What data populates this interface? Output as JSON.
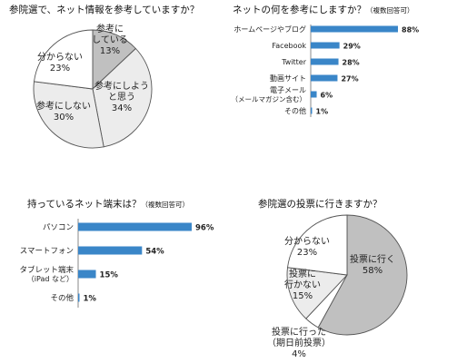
{
  "chart_data": [
    {
      "type": "pie",
      "title": "参院選で、ネット情報を参考していますか？",
      "slices": [
        {
          "label": [
            "参考に",
            "している"
          ],
          "value": 13,
          "pct": "13%",
          "color": "#c0c0c0"
        },
        {
          "label": [
            "参考にしよう",
            "と思う"
          ],
          "value": 34,
          "pct": "34%",
          "color": "#ececec"
        },
        {
          "label": [
            "参考にしない"
          ],
          "value": 30,
          "pct": "30%",
          "color": "#ececec"
        },
        {
          "label": [
            "分からない"
          ],
          "value": 23,
          "pct": "23%",
          "color": "#ffffff"
        }
      ]
    },
    {
      "type": "bar",
      "orientation": "horizontal",
      "title": "ネットの何を参考にしますか？",
      "note": "（複数回答可）",
      "categories": [
        [
          "ホームページやブログ"
        ],
        [
          "Facebook"
        ],
        [
          "Twitter"
        ],
        [
          "動画サイト"
        ],
        [
          "電子メール",
          "（メールマガジン含む）"
        ],
        [
          "その他"
        ]
      ],
      "values": [
        88,
        29,
        28,
        27,
        6,
        1
      ],
      "value_labels": [
        "88%",
        "29%",
        "28%",
        "27%",
        "6%",
        "1%"
      ],
      "xlim": [
        0,
        88
      ],
      "bar_color": "#3a86c8"
    },
    {
      "type": "bar",
      "orientation": "horizontal",
      "title": "持っているネット端末は？",
      "note": "（複数回答可）",
      "categories": [
        [
          "パソコン"
        ],
        [
          "スマートフォン"
        ],
        [
          "タブレット端末",
          "（iPad など）"
        ],
        [
          "その他"
        ]
      ],
      "values": [
        96,
        54,
        15,
        1
      ],
      "value_labels": [
        "96%",
        "54%",
        "15%",
        "1%"
      ],
      "xlim": [
        0,
        96
      ],
      "bar_color": "#3a86c8"
    },
    {
      "type": "pie",
      "title": "参院選の投票に行きますか？",
      "slices": [
        {
          "label": [
            "投票に行く"
          ],
          "value": 58,
          "pct": "58%",
          "color": "#c0c0c0"
        },
        {
          "label": [
            "投票に行った",
            "（期日前投票）"
          ],
          "value": 4,
          "pct": "4%",
          "color": "#ffffff"
        },
        {
          "label": [
            "投票に",
            "行かない"
          ],
          "value": 15,
          "pct": "15%",
          "color": "#ececec"
        },
        {
          "label": [
            "分からない"
          ],
          "value": 23,
          "pct": "23%",
          "color": "#ffffff"
        }
      ]
    }
  ]
}
